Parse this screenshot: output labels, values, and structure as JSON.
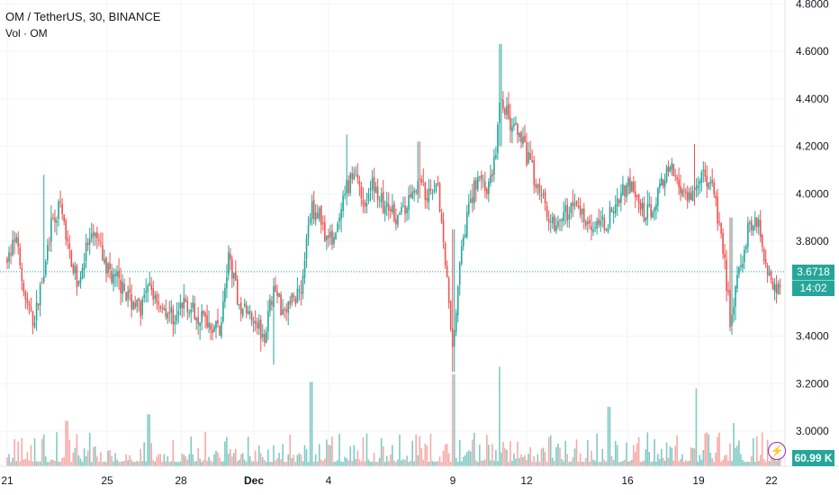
{
  "legend": {
    "symbol": "OM / TetherUS, 30, BINANCE",
    "volume": "Vol · OM"
  },
  "price_axis": {
    "labels": [
      "4.8000",
      "4.6000",
      "4.4000",
      "4.2000",
      "4.0000",
      "3.8000",
      "3.6000",
      "3.4000",
      "3.2000",
      "3.0000"
    ]
  },
  "time_axis": {
    "labels": [
      "21",
      "25",
      "28",
      "Dec",
      "4",
      "9",
      "12",
      "16",
      "19",
      "22"
    ]
  },
  "current": {
    "price": "3.6718",
    "countdown": "14:02",
    "volume": "60.99 K"
  },
  "colors": {
    "up": "#26a69a",
    "down": "#ef5350",
    "up_volume": "#80cbc4",
    "down_volume": "#f7a9a7",
    "axis_text": "#131722",
    "price_line": "#26a69a"
  },
  "icons": {
    "logo": "tradingview-logo-icon"
  },
  "chart_data": {
    "type": "candlestick",
    "title": "OM / TetherUS, 30, BINANCE",
    "ylim": [
      2.8,
      4.85
    ],
    "y_ticks": [
      4.8,
      4.6,
      4.4,
      4.2,
      4.0,
      3.8,
      3.6,
      3.4,
      3.2,
      3.0
    ],
    "x_ticks": [
      "21",
      "25",
      "28",
      "Dec",
      "4",
      "9",
      "12",
      "16",
      "19",
      "22"
    ],
    "last_price": 3.6718,
    "price_path": [
      [
        0,
        3.72
      ],
      [
        0.7,
        3.8
      ],
      [
        1.4,
        3.55
      ],
      [
        2.1,
        3.45
      ],
      [
        2.8,
        3.68
      ],
      [
        3.4,
        3.85
      ],
      [
        4.1,
        3.95
      ],
      [
        4.8,
        3.75
      ],
      [
        5.5,
        3.62
      ],
      [
        6.2,
        3.78
      ],
      [
        6.9,
        3.82
      ],
      [
        7.6,
        3.7
      ],
      [
        8.3,
        3.65
      ],
      [
        9.0,
        3.6
      ],
      [
        9.7,
        3.55
      ],
      [
        10.4,
        3.52
      ],
      [
        11.1,
        3.6
      ],
      [
        11.8,
        3.55
      ],
      [
        12.5,
        3.5
      ],
      [
        13.2,
        3.48
      ],
      [
        13.9,
        3.55
      ],
      [
        14.6,
        3.5
      ],
      [
        15.3,
        3.48
      ],
      [
        16.0,
        3.45
      ],
      [
        16.7,
        3.43
      ],
      [
        17.4,
        3.75
      ],
      [
        18.1,
        3.55
      ],
      [
        18.8,
        3.5
      ],
      [
        19.5,
        3.48
      ],
      [
        20.2,
        3.4
      ],
      [
        20.9,
        3.6
      ],
      [
        21.6,
        3.52
      ],
      [
        22.4,
        3.55
      ],
      [
        23.1,
        3.62
      ],
      [
        23.8,
        3.95
      ],
      [
        24.5,
        3.9
      ],
      [
        25.2,
        3.8
      ],
      [
        25.9,
        3.85
      ],
      [
        26.6,
        4.02
      ],
      [
        27.3,
        4.1
      ],
      [
        28.0,
        3.95
      ],
      [
        28.7,
        4.05
      ],
      [
        29.4,
        3.95
      ],
      [
        30.1,
        3.92
      ],
      [
        30.8,
        3.9
      ],
      [
        31.5,
        3.98
      ],
      [
        32.2,
        4.05
      ],
      [
        32.9,
        3.98
      ],
      [
        33.6,
        4.08
      ],
      [
        34.3,
        3.7
      ],
      [
        34.9,
        3.35
      ],
      [
        35.5,
        3.8
      ],
      [
        36.2,
        3.95
      ],
      [
        36.9,
        4.1
      ],
      [
        37.6,
        4.0
      ],
      [
        38.3,
        4.2
      ],
      [
        38.6,
        4.42
      ],
      [
        39.3,
        4.3
      ],
      [
        40.0,
        4.25
      ],
      [
        40.7,
        4.15
      ],
      [
        41.4,
        4.05
      ],
      [
        42.1,
        3.95
      ],
      [
        42.8,
        3.88
      ],
      [
        43.5,
        3.9
      ],
      [
        44.2,
        3.95
      ],
      [
        44.9,
        3.92
      ],
      [
        45.6,
        3.88
      ],
      [
        46.3,
        3.85
      ],
      [
        47.0,
        3.9
      ],
      [
        47.7,
        3.98
      ],
      [
        48.4,
        4.05
      ],
      [
        49.1,
        3.98
      ],
      [
        49.8,
        3.9
      ],
      [
        50.5,
        3.95
      ],
      [
        51.2,
        4.05
      ],
      [
        51.9,
        4.1
      ],
      [
        52.6,
        4.05
      ],
      [
        53.3,
        3.98
      ],
      [
        54.0,
        4.05
      ],
      [
        54.7,
        4.08
      ],
      [
        55.4,
        4.0
      ],
      [
        56.1,
        3.8
      ],
      [
        56.8,
        3.45
      ],
      [
        57.5,
        3.7
      ],
      [
        58.2,
        3.85
      ],
      [
        58.9,
        3.9
      ],
      [
        59.6,
        3.7
      ],
      [
        60.3,
        3.6
      ],
      [
        61.0,
        3.6718
      ]
    ],
    "events": [
      {
        "x": 34.9,
        "low": 3.25,
        "high": 3.85
      },
      {
        "x": 38.6,
        "low": 4.2,
        "high": 4.63
      },
      {
        "x": 20.9,
        "low": 3.28,
        "high": 3.58
      },
      {
        "x": 56.8,
        "low": 3.42,
        "high": 3.9
      },
      {
        "x": 32.2,
        "low": 3.98,
        "high": 4.22
      },
      {
        "x": 26.6,
        "low": 3.95,
        "high": 4.25
      },
      {
        "x": 53.9,
        "low": 3.95,
        "high": 4.21
      },
      {
        "x": 2.8,
        "low": 3.65,
        "high": 4.08
      }
    ],
    "volume_spikes": [
      {
        "x": 34.9,
        "v": 0.85
      },
      {
        "x": 23.8,
        "v": 0.78
      },
      {
        "x": 38.5,
        "v": 0.92
      },
      {
        "x": 54.0,
        "v": 0.72
      },
      {
        "x": 57.0,
        "v": 0.4
      },
      {
        "x": 47.0,
        "v": 0.55
      },
      {
        "x": 11.0,
        "v": 0.48
      },
      {
        "x": 4.6,
        "v": 0.42
      }
    ]
  }
}
